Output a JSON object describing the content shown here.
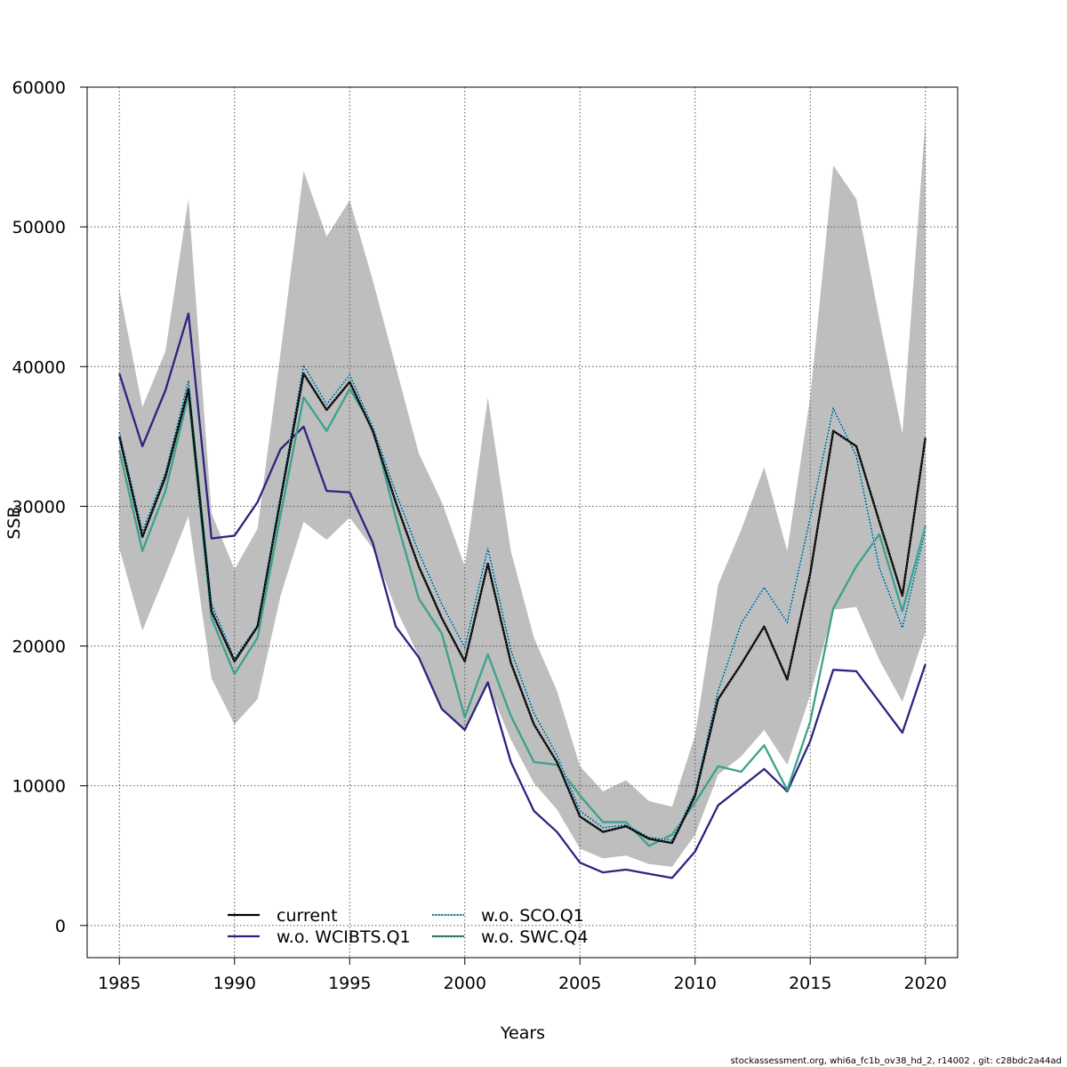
{
  "chart_data": {
    "type": "line",
    "title": "",
    "xlabel": "Years",
    "ylabel": "SSB",
    "xlim": [
      1983.6,
      2021.4
    ],
    "ylim": [
      -2300,
      60000
    ],
    "x_ticks": [
      1985,
      1990,
      1995,
      2000,
      2005,
      2010,
      2015,
      2020
    ],
    "y_ticks": [
      0,
      10000,
      20000,
      30000,
      40000,
      50000,
      60000
    ],
    "grid": true,
    "legend_position": "bottom-center",
    "x": [
      1985,
      1986,
      1987,
      1988,
      1989,
      1990,
      1991,
      1992,
      1993,
      1994,
      1995,
      1996,
      1997,
      1998,
      1999,
      2000,
      2001,
      2002,
      2003,
      2004,
      2005,
      2006,
      2007,
      2008,
      2009,
      2010,
      2011,
      2012,
      2013,
      2014,
      2015,
      2016,
      2017,
      2018,
      2019,
      2020
    ],
    "band": {
      "color": "#bebebe",
      "upper": [
        45500,
        37100,
        41100,
        52000,
        29500,
        25500,
        28400,
        41000,
        54000,
        49300,
        51900,
        46200,
        40000,
        33800,
        30300,
        25700,
        37800,
        26800,
        20600,
        16800,
        11400,
        9600,
        10400,
        8900,
        8500,
        13600,
        24400,
        28300,
        32800,
        26800,
        37800,
        54400,
        52000,
        43400,
        35200,
        57600
      ],
      "lower": [
        27000,
        21100,
        25100,
        29300,
        17700,
        14400,
        16200,
        23600,
        28900,
        27600,
        29200,
        27000,
        22700,
        19300,
        15400,
        14000,
        17200,
        13300,
        10200,
        8300,
        5500,
        4800,
        5000,
        4400,
        4200,
        6500,
        10800,
        12100,
        14000,
        11500,
        16500,
        22600,
        22800,
        19000,
        16000,
        21000
      ]
    },
    "series": [
      {
        "name": "current",
        "color": "#000000",
        "style": "solid",
        "values": [
          35000,
          27800,
          32100,
          38400,
          22500,
          18900,
          21400,
          30500,
          39500,
          36900,
          38900,
          35400,
          30300,
          25700,
          22000,
          18900,
          25900,
          18800,
          14400,
          11700,
          7800,
          6700,
          7100,
          6200,
          5900,
          9300,
          16200,
          18700,
          21400,
          17600,
          25200,
          35400,
          34300,
          28900,
          23600,
          34900
        ]
      },
      {
        "name": "w.o. WCIBTS.Q1",
        "color": "#2d2480",
        "style": "solid",
        "values": [
          39500,
          34300,
          38300,
          43800,
          27700,
          27900,
          30300,
          34100,
          35700,
          31100,
          31000,
          27400,
          21400,
          19200,
          15500,
          14000,
          17400,
          11700,
          8200,
          6700,
          4500,
          3800,
          4000,
          3700,
          3400,
          5300,
          8600,
          9900,
          11200,
          9600,
          13200,
          18300,
          18200,
          16000,
          13800,
          18700
        ]
      },
      {
        "name": "w.o. SCO.Q1",
        "color": "#87ceeb",
        "style": "dotted",
        "values": [
          35300,
          28200,
          32400,
          39000,
          23000,
          19100,
          21500,
          30800,
          40100,
          37300,
          39400,
          35700,
          31000,
          26700,
          23000,
          19900,
          27000,
          19700,
          15200,
          12200,
          8200,
          7000,
          7200,
          6300,
          6100,
          9500,
          16800,
          21600,
          24200,
          21700,
          29200,
          37000,
          33600,
          25600,
          21300,
          28300
        ]
      },
      {
        "name": "w.o. SWC.Q4",
        "color": "#3aa28c",
        "style": "solid",
        "values": [
          34000,
          26800,
          31100,
          38000,
          22000,
          18000,
          20600,
          29400,
          37800,
          35400,
          38400,
          35700,
          29200,
          23400,
          20900,
          14900,
          19400,
          15000,
          11700,
          11500,
          9300,
          7400,
          7400,
          5700,
          6500,
          8800,
          11400,
          11000,
          12900,
          9700,
          14600,
          22700,
          25700,
          28000,
          22500,
          28600
        ]
      }
    ],
    "legend": [
      "current",
      "w.o. WCIBTS.Q1",
      "w.o. SCO.Q1",
      "w.o. SWC.Q4"
    ]
  },
  "footer_text": "stockassessment.org, whi6a_fc1b_ov38_hd_2, r14002 , git: c28bdc2a44ad"
}
